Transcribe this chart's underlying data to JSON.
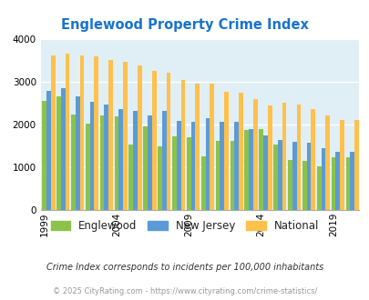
{
  "title": "Englewood Property Crime Index",
  "years": [
    1999,
    2000,
    2001,
    2002,
    2003,
    2004,
    2005,
    2006,
    2007,
    2008,
    2009,
    2010,
    2011,
    2012,
    2013,
    2014,
    2015,
    2016,
    2017,
    2018,
    2019,
    2020
  ],
  "englewood": [
    2550,
    2650,
    2230,
    2020,
    2210,
    2200,
    1530,
    1950,
    1480,
    1720,
    1700,
    1250,
    1620,
    1620,
    1870,
    1890,
    1530,
    1160,
    1140,
    1020,
    1230,
    1230
  ],
  "new_jersey": [
    2780,
    2840,
    2660,
    2540,
    2460,
    2360,
    2310,
    2210,
    2310,
    2090,
    2070,
    2140,
    2070,
    2060,
    1890,
    1740,
    1640,
    1590,
    1570,
    1450,
    1360,
    1360
  ],
  "national": [
    3610,
    3660,
    3620,
    3600,
    3510,
    3460,
    3380,
    3260,
    3210,
    3050,
    2960,
    2950,
    2760,
    2740,
    2590,
    2450,
    2510,
    2460,
    2370,
    2220,
    2110,
    2110
  ],
  "englewood_color": "#8bc34a",
  "new_jersey_color": "#5b9bd5",
  "national_color": "#ffc04c",
  "bg_color": "#e0eff5",
  "title_color": "#1874cd",
  "ylim": [
    0,
    4000
  ],
  "yticks": [
    0,
    1000,
    2000,
    3000,
    4000
  ],
  "xlabel_ticks": [
    1999,
    2004,
    2009,
    2014,
    2019
  ],
  "footnote1": "Crime Index corresponds to incidents per 100,000 inhabitants",
  "footnote2": "© 2025 CityRating.com - https://www.cityrating.com/crime-statistics/",
  "footnote1_color": "#333333",
  "footnote2_color": "#999999"
}
